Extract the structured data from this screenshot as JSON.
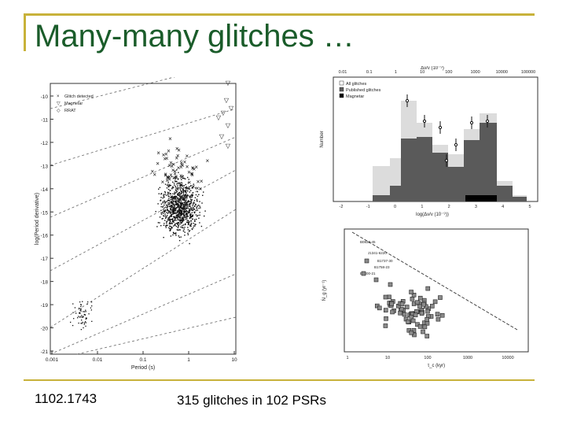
{
  "slide": {
    "title": "Many-many glitches …",
    "footer_left": "1102.1743",
    "footer_mid": "315 glitches in 102 PSRs",
    "accent_color": "#c8b23a",
    "title_color": "#1a5c2a"
  },
  "ppdot_panel": {
    "legend": [
      "Glitch detected",
      "Magnetar",
      "RRAT"
    ],
    "ylabel": "log(Period derivative)",
    "xlabel": "Period (s)",
    "y_ticks": [
      "-10",
      "-11",
      "-12",
      "-13",
      "-14",
      "-15",
      "-16",
      "-17",
      "-18",
      "-19",
      "-20",
      "-21"
    ],
    "x_ticks": [
      "0.001",
      "0.01",
      "0.1",
      "1",
      "10"
    ]
  },
  "hist_panel": {
    "top_axis_label": "Δν/ν (10⁻⁹)",
    "top_ticks": [
      "0.01",
      "0.1",
      "1",
      "10",
      "100",
      "1000",
      "10000",
      "100000"
    ],
    "legend": [
      "All glitches",
      "Published glitches",
      "Magnetar"
    ],
    "ylabel": "Number",
    "xlabel": "log(Δν/ν (10⁻⁹))",
    "x_ticks": [
      "-2",
      "-1",
      "0",
      "1",
      "2",
      "3",
      "4",
      "5"
    ]
  },
  "tau_panel": {
    "ylabel": "Ṅ_g (yr⁻¹)",
    "xlabel": "τ_c (kyr)",
    "x_ticks": [
      "1",
      "10",
      "100",
      "1000",
      "10000"
    ],
    "annotations": [
      "B0833-45",
      "J1341-6220",
      "B1737-30",
      "B1758-23",
      "B1800-21"
    ]
  }
}
